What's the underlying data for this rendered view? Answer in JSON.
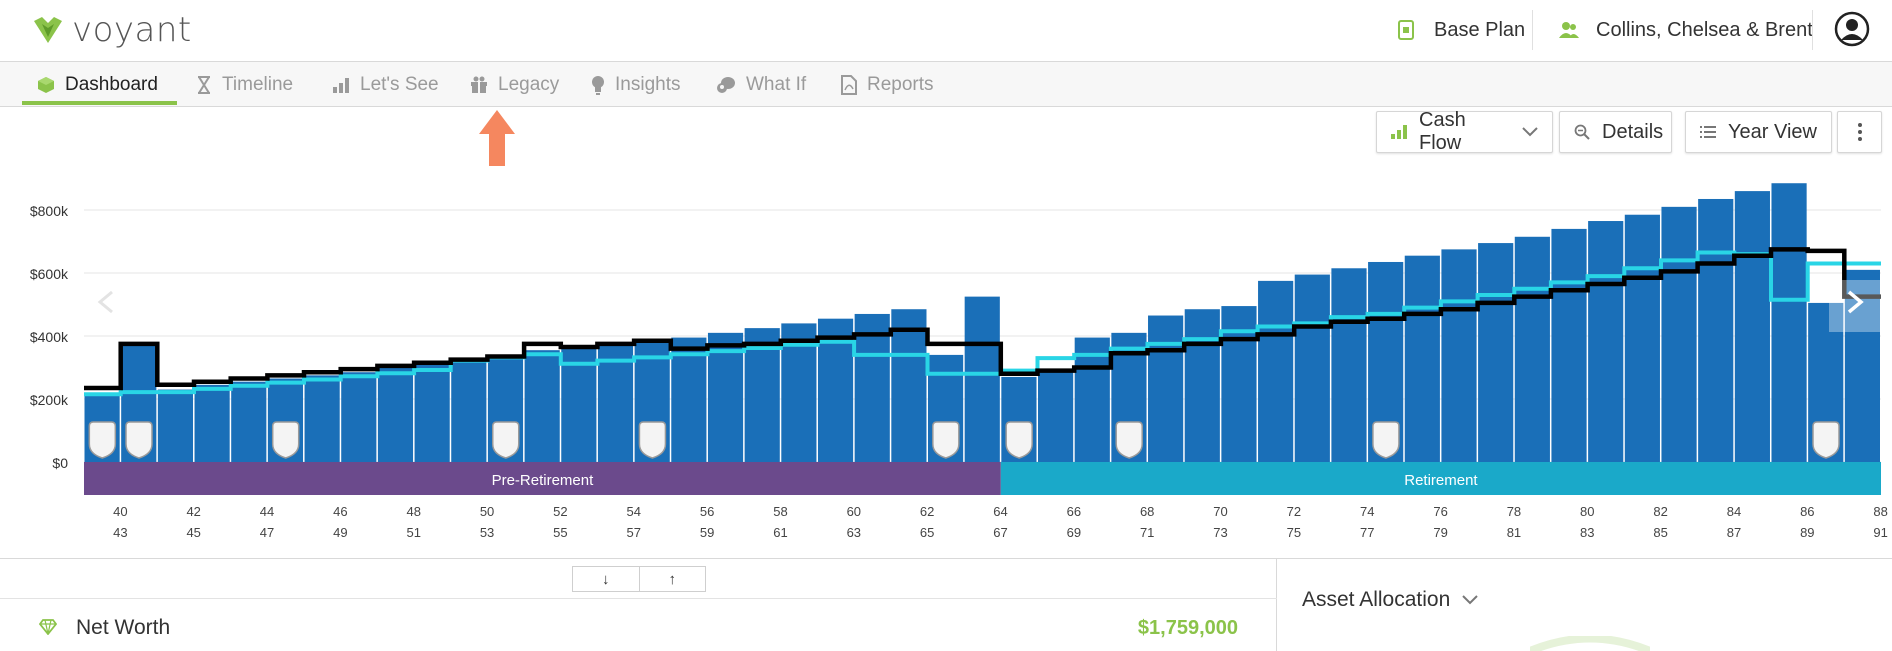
{
  "brand": {
    "name": "voyant",
    "accent": "#8bc34a"
  },
  "header": {
    "plan_label": "Base Plan",
    "client_label": "Collins, Chelsea & Brent"
  },
  "tabs": [
    {
      "label": "Dashboard",
      "icon": "cube-icon",
      "active": true
    },
    {
      "label": "Timeline",
      "icon": "hourglass-icon"
    },
    {
      "label": "Let's See",
      "icon": "bars-icon"
    },
    {
      "label": "Legacy",
      "icon": "gift-icon"
    },
    {
      "label": "Insights",
      "icon": "lightbulb-icon"
    },
    {
      "label": "What If",
      "icon": "thinking-icon"
    },
    {
      "label": "Reports",
      "icon": "pdf-icon"
    }
  ],
  "toolbar": {
    "cash_flow_label": "Cash Flow",
    "details_label": "Details",
    "year_view_label": "Year View"
  },
  "chart_data": {
    "type": "bar",
    "ylim": [
      0,
      900000
    ],
    "y_ticks": [
      "$0",
      "$200k",
      "$400k",
      "$600k",
      "$800k"
    ],
    "y_tick_values": [
      0,
      200000,
      400000,
      600000,
      800000
    ],
    "age_row1": [
      "40",
      "42",
      "44",
      "46",
      "48",
      "50",
      "52",
      "54",
      "56",
      "58",
      "60",
      "62",
      "64",
      "66",
      "68",
      "70",
      "72",
      "74",
      "76",
      "78",
      "80",
      "82",
      "84",
      "86",
      "88"
    ],
    "age_row2": [
      "43",
      "45",
      "47",
      "49",
      "51",
      "53",
      "55",
      "57",
      "59",
      "61",
      "63",
      "65",
      "67",
      "69",
      "71",
      "73",
      "75",
      "77",
      "79",
      "81",
      "83",
      "85",
      "87",
      "89",
      "91"
    ],
    "bar_values": [
      215000,
      375000,
      230000,
      245000,
      255000,
      265000,
      275000,
      285000,
      300000,
      310000,
      320000,
      335000,
      355000,
      360000,
      370000,
      385000,
      395000,
      410000,
      425000,
      440000,
      455000,
      470000,
      485000,
      340000,
      525000,
      270000,
      285000,
      395000,
      410000,
      465000,
      485000,
      495000,
      575000,
      595000,
      615000,
      635000,
      655000,
      675000,
      695000,
      715000,
      740000,
      765000,
      785000,
      810000,
      835000,
      860000,
      885000,
      505000,
      610000
    ],
    "series": [
      {
        "name": "Expenses",
        "values": [
          235000,
          375000,
          245000,
          255000,
          265000,
          275000,
          285000,
          295000,
          305000,
          315000,
          325000,
          335000,
          375000,
          365000,
          375000,
          385000,
          360000,
          370000,
          375000,
          385000,
          395000,
          405000,
          420000,
          375000,
          375000,
          280000,
          290000,
          300000,
          345000,
          355000,
          375000,
          390000,
          405000,
          430000,
          445000,
          455000,
          470000,
          485000,
          505000,
          525000,
          545000,
          565000,
          585000,
          605000,
          630000,
          655000,
          675000,
          670000,
          525000
        ],
        "color": "#000000"
      },
      {
        "name": "Income",
        "values": [
          215000,
          222000,
          222000,
          232000,
          242000,
          252000,
          262000,
          272000,
          282000,
          292000,
          322000,
          332000,
          342000,
          312000,
          322000,
          332000,
          342000,
          352000,
          362000,
          372000,
          382000,
          340000,
          340000,
          280000,
          280000,
          290000,
          330000,
          340000,
          360000,
          375000,
          390000,
          415000,
          430000,
          440000,
          460000,
          470000,
          490000,
          510000,
          530000,
          550000,
          570000,
          590000,
          615000,
          640000,
          665000,
          660000,
          515000,
          630000,
          630000
        ],
        "color": "#29d5e6"
      }
    ],
    "events_at_bar_index": [
      0,
      1,
      5,
      11,
      15,
      23,
      25,
      28,
      35,
      47
    ],
    "phases": [
      {
        "label": "Pre-Retirement",
        "color": "#6b4a8c",
        "from": 0,
        "to": 25
      },
      {
        "label": "Retirement",
        "color": "#1aa9c9",
        "from": 25,
        "to": 49
      }
    ],
    "bar_color": "#1a6fb8",
    "grid": true
  },
  "bottom": {
    "net_worth_label": "Net Worth",
    "net_worth_value": "$1,759,000",
    "asset_allocation_label": "Asset Allocation",
    "sort_down": "↓",
    "sort_up": "↑"
  }
}
